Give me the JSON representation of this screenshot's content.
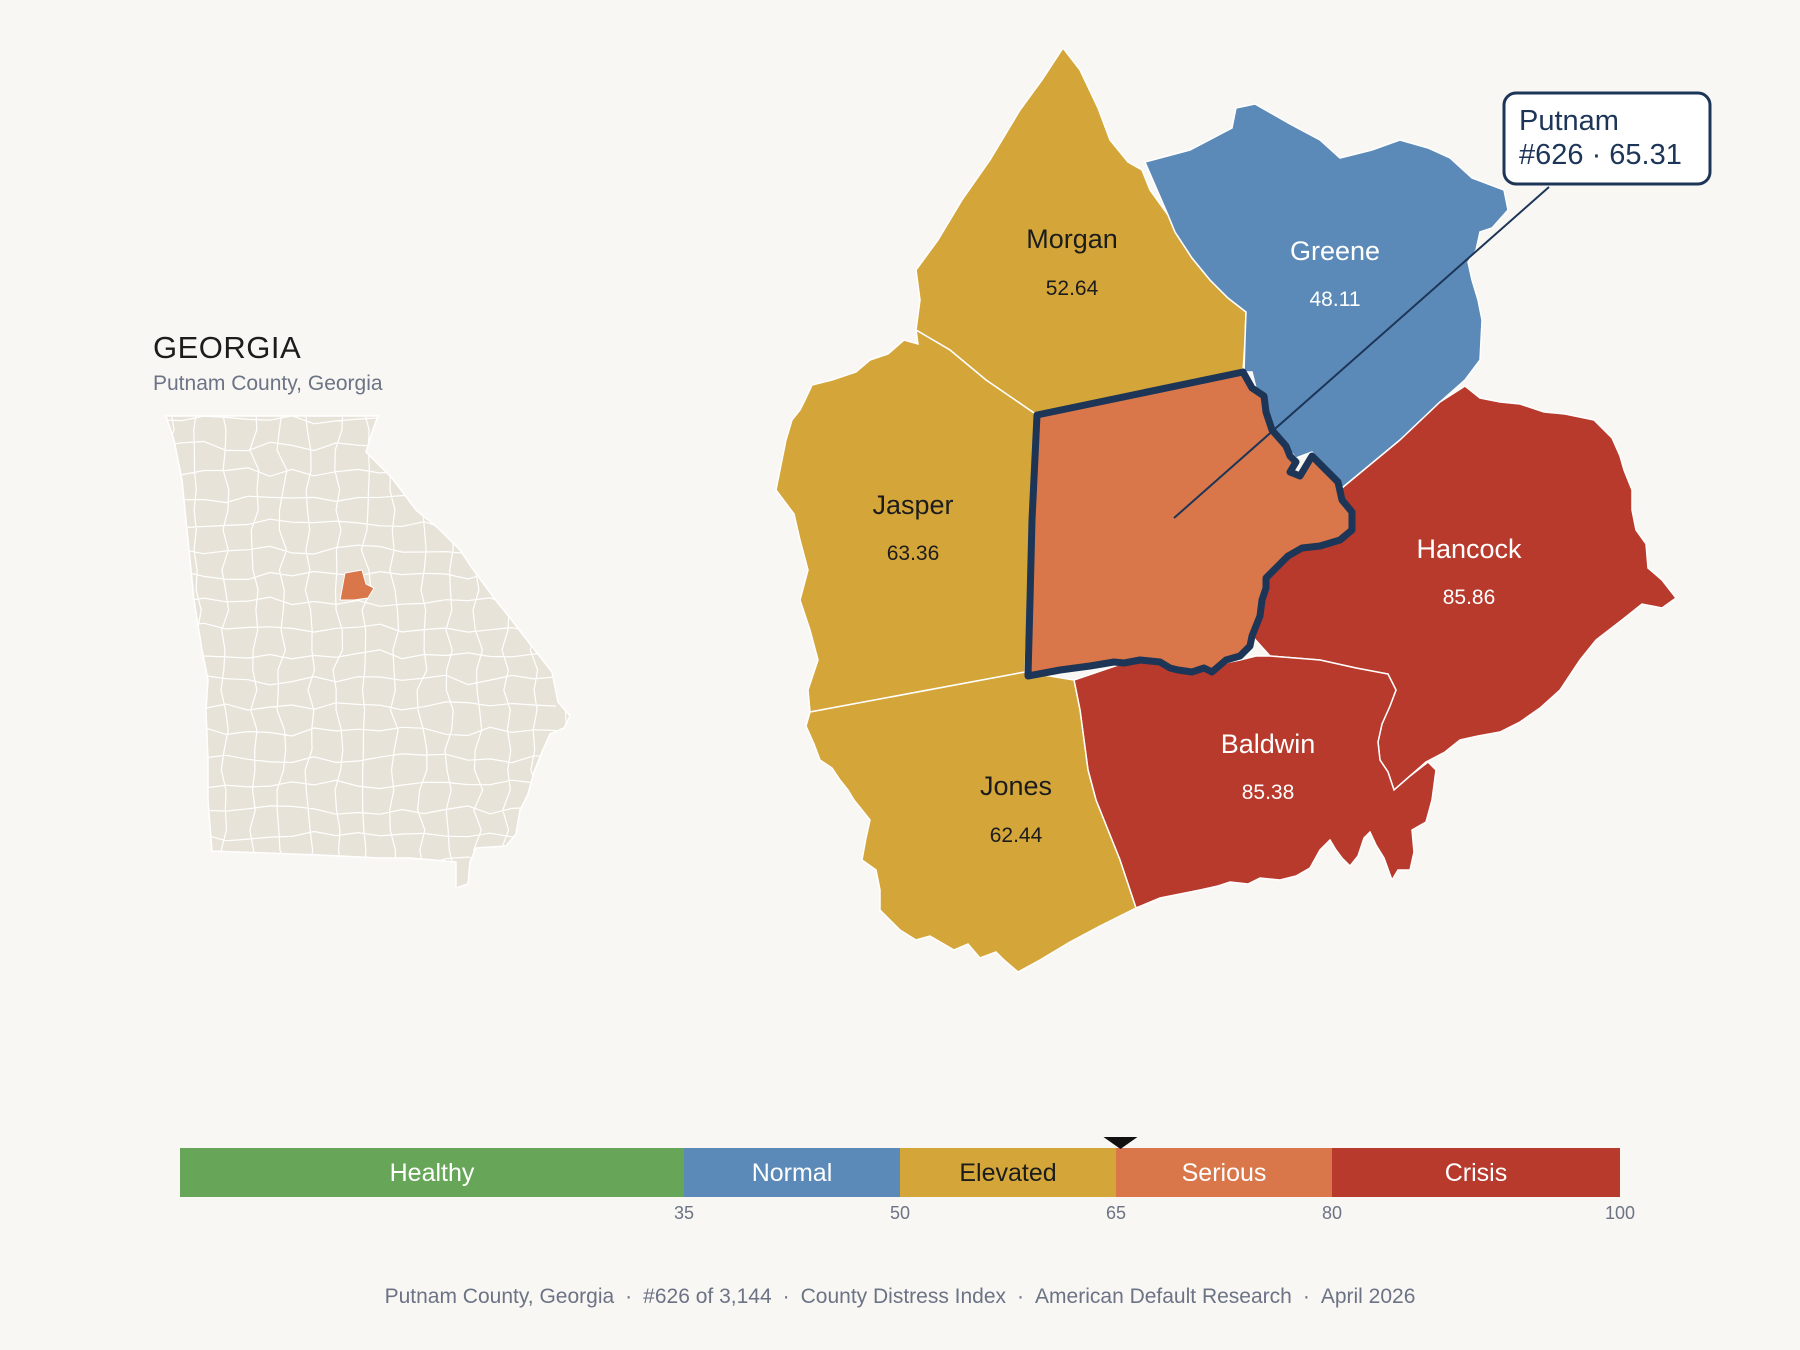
{
  "inset": {
    "title": "GEORGIA",
    "subtitle": "Putnam County, Georgia",
    "highlight_color": "#d9774a",
    "base_color": "#e8e3d8"
  },
  "callout": {
    "line1": "Putnam",
    "line2": "#626 · 65.31"
  },
  "counties": [
    {
      "name": "Morgan",
      "value": "52.64",
      "category": "Elevated",
      "color": "#d4a63a"
    },
    {
      "name": "Greene",
      "value": "48.11",
      "category": "Normal",
      "color": "#5b8ab8"
    },
    {
      "name": "Jasper",
      "value": "63.36",
      "category": "Elevated",
      "color": "#d4a63a"
    },
    {
      "name": "Hancock",
      "value": "85.86",
      "category": "Crisis",
      "color": "#b83a2c"
    },
    {
      "name": "Baldwin",
      "value": "85.38",
      "category": "Crisis",
      "color": "#b83a2c"
    },
    {
      "name": "Jones",
      "value": "62.44",
      "category": "Elevated",
      "color": "#d4a63a"
    },
    {
      "name": "Putnam",
      "value": "65.31",
      "category": "Serious",
      "color": "#d9774a"
    }
  ],
  "scale": {
    "min": 0,
    "max": 100,
    "marker_value": 65.31,
    "bands": [
      {
        "label": "Healthy",
        "from": 0,
        "to": 35,
        "color": "#67a659"
      },
      {
        "label": "Normal",
        "from": 35,
        "to": 50,
        "color": "#5b8ab8"
      },
      {
        "label": "Elevated",
        "from": 50,
        "to": 65,
        "color": "#d4a63a"
      },
      {
        "label": "Serious",
        "from": 65,
        "to": 80,
        "color": "#d9774a"
      },
      {
        "label": "Crisis",
        "from": 80,
        "to": 100,
        "color": "#b83a2c"
      }
    ],
    "ticks": [
      "35",
      "50",
      "65",
      "80",
      "100"
    ]
  },
  "footer": {
    "county": "Putnam County, Georgia",
    "rank": "#626 of 3,144",
    "index": "County Distress Index",
    "source": "American Default Research",
    "date": "April 2026"
  }
}
